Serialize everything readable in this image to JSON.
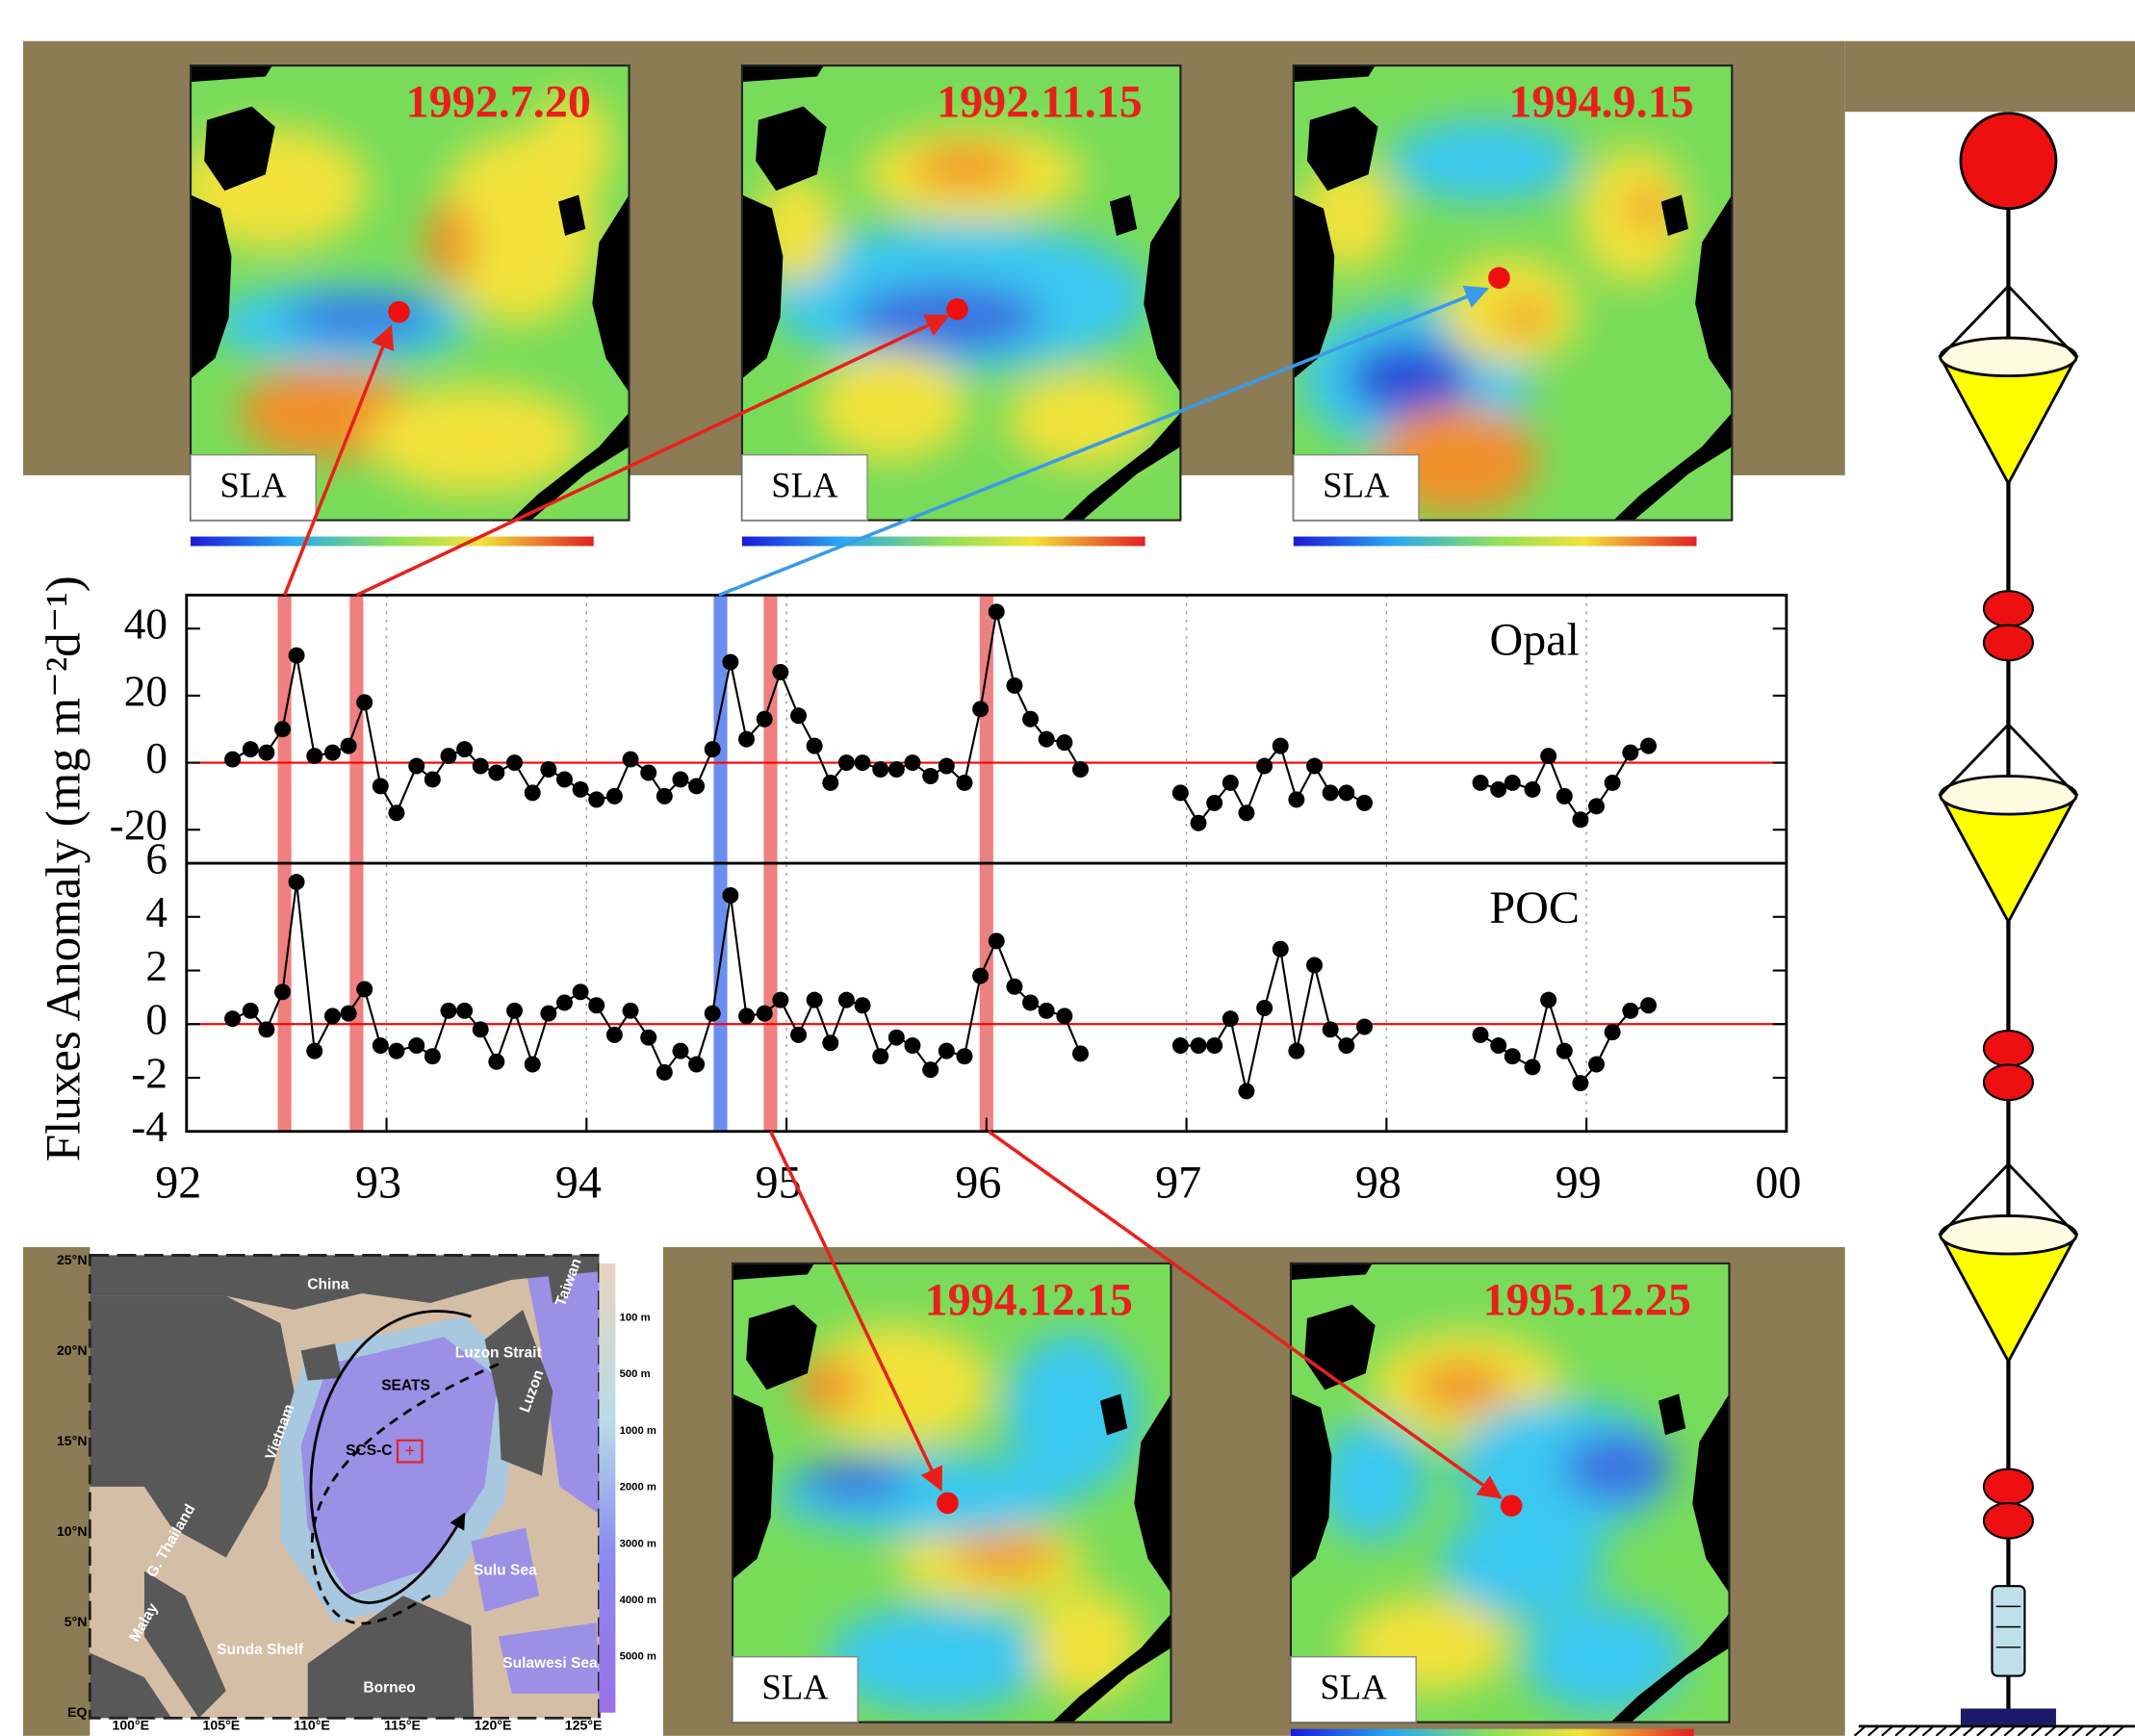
{
  "sla_maps": [
    {
      "date": "1992.7.20",
      "label": "SLA"
    },
    {
      "date": "1992.11.15",
      "label": "SLA"
    },
    {
      "date": "1994.9.15",
      "label": "SLA"
    },
    {
      "date": "1994.12.15",
      "label": "SLA"
    },
    {
      "date": "1995.12.25",
      "label": "SLA"
    }
  ],
  "ylabel": "Fluxes Anomaly (mg m⁻²d⁻¹)",
  "highlights": [
    {
      "x": 92.49,
      "color": "#f08080"
    },
    {
      "x": 92.85,
      "color": "#f08080"
    },
    {
      "x": 94.67,
      "color": "#6b8ff0"
    },
    {
      "x": 94.92,
      "color": "#f08080"
    },
    {
      "x": 96.0,
      "color": "#f08080"
    }
  ],
  "chart_data": [
    {
      "type": "line",
      "title": "Opal",
      "color": "#000000",
      "x": [
        92.23,
        92.32,
        92.4,
        92.48,
        92.55,
        92.64,
        92.73,
        92.81,
        92.89,
        92.97,
        93.05,
        93.15,
        93.23,
        93.31,
        93.39,
        93.47,
        93.55,
        93.64,
        93.73,
        93.81,
        93.89,
        93.97,
        94.05,
        94.14,
        94.22,
        94.31,
        94.39,
        94.47,
        94.55,
        94.63,
        94.72,
        94.8,
        94.89,
        94.97,
        95.06,
        95.14,
        95.22,
        95.3,
        95.38,
        95.47,
        95.55,
        95.63,
        95.72,
        95.8,
        95.89,
        95.97,
        96.05,
        96.14,
        96.22,
        96.3,
        96.39,
        96.47,
        null,
        96.97,
        97.06,
        97.14,
        97.22,
        97.3,
        97.39,
        97.47,
        97.55,
        97.64,
        97.72,
        97.8,
        97.89,
        null,
        98.47,
        98.56,
        98.63,
        98.73,
        98.81,
        98.89,
        98.97,
        99.05,
        99.13,
        99.22,
        99.31
      ],
      "values": [
        1,
        4,
        3,
        10,
        32,
        2,
        3,
        5,
        18,
        -7,
        -15,
        -1,
        -5,
        2,
        4,
        -1,
        -3,
        0,
        -9,
        -2,
        -5,
        -8,
        -11,
        -10,
        1,
        -3,
        -10,
        -5,
        -7,
        4,
        30,
        7,
        13,
        27,
        14,
        5,
        -6,
        0,
        0,
        -2,
        -2,
        0,
        -4,
        -1,
        -6,
        16,
        45,
        23,
        13,
        7,
        6,
        -2,
        null,
        -9,
        -18,
        -12,
        -6,
        -15,
        -1,
        5,
        -11,
        -1,
        -9,
        -9,
        -12,
        null,
        -6,
        -8,
        -6,
        -8,
        2,
        -10,
        -17,
        -13,
        -6,
        3,
        5
      ],
      "xlim": [
        92,
        100
      ],
      "ylim": [
        -30,
        50
      ],
      "yticks": [
        -20,
        0,
        20,
        40
      ],
      "grid": true,
      "ref_line": 0,
      "ref_line_color": "#ff0000"
    },
    {
      "type": "line",
      "title": "POC",
      "color": "#000000",
      "x": [
        92.23,
        92.32,
        92.4,
        92.48,
        92.55,
        92.64,
        92.73,
        92.81,
        92.89,
        92.97,
        93.05,
        93.15,
        93.23,
        93.31,
        93.39,
        93.47,
        93.55,
        93.64,
        93.73,
        93.81,
        93.89,
        93.97,
        94.05,
        94.14,
        94.22,
        94.31,
        94.39,
        94.47,
        94.55,
        94.63,
        94.72,
        94.8,
        94.89,
        94.97,
        95.06,
        95.14,
        95.22,
        95.3,
        95.38,
        95.47,
        95.55,
        95.63,
        95.72,
        95.8,
        95.89,
        95.97,
        96.05,
        96.14,
        96.22,
        96.3,
        96.39,
        96.47,
        null,
        96.97,
        97.06,
        97.14,
        97.22,
        97.3,
        97.39,
        97.47,
        97.55,
        97.64,
        97.72,
        97.8,
        97.89,
        null,
        98.47,
        98.56,
        98.63,
        98.73,
        98.81,
        98.89,
        98.97,
        99.05,
        99.13,
        99.22,
        99.31
      ],
      "values": [
        0.2,
        0.5,
        -0.2,
        1.2,
        5.3,
        -1,
        0.3,
        0.4,
        1.3,
        -0.8,
        -1,
        -0.8,
        -1.2,
        0.5,
        0.5,
        -0.2,
        -1.4,
        0.5,
        -1.5,
        0.4,
        0.8,
        1.2,
        0.7,
        -0.4,
        0.5,
        -0.5,
        -1.8,
        -1,
        -1.5,
        0.4,
        4.8,
        0.3,
        0.4,
        0.9,
        -0.4,
        0.9,
        -0.7,
        0.9,
        0.7,
        -1.2,
        -0.5,
        -0.8,
        -1.7,
        -1,
        -1.2,
        1.8,
        3.1,
        1.4,
        0.8,
        0.5,
        0.3,
        -1.1,
        null,
        -0.8,
        -0.8,
        -0.8,
        0.2,
        -2.5,
        0.6,
        2.8,
        -1,
        2.2,
        -0.2,
        -0.8,
        -0.1,
        null,
        -0.4,
        -0.8,
        -1.2,
        -1.6,
        0.9,
        -1,
        -2.2,
        -1.5,
        -0.3,
        0.5,
        0.7
      ],
      "xlim": [
        92,
        100
      ],
      "xticks": [
        92,
        93,
        94,
        95,
        96,
        97,
        98,
        99,
        {
          "value": 100,
          "label": "00"
        }
      ],
      "ylim": [
        -4,
        6
      ],
      "yticks": [
        -4,
        -2,
        0,
        2,
        4,
        6
      ],
      "grid": true,
      "ref_line": 0,
      "ref_line_color": "#ff0000"
    }
  ],
  "region_map": {
    "places": [
      "China",
      "Vietnam",
      "G. Thailand",
      "Malay",
      "Sunda Shelf",
      "Borneo",
      "Sulu Sea",
      "Sulawesi Sea",
      "Luzon",
      "Luzon Strait",
      "Taiwan",
      "SEATS",
      "SCS-C"
    ],
    "lat_labels": [
      "25°N",
      "20°N",
      "15°N",
      "10°N",
      "5°N",
      "EQ"
    ],
    "lon_labels": [
      "100°E",
      "105°E",
      "110°E",
      "115°E",
      "120°E",
      "125°E"
    ],
    "depth_labels": [
      "100 m",
      "500 m",
      "1000 m",
      "2000 m",
      "3000 m",
      "4000 m",
      "5000 m"
    ]
  }
}
